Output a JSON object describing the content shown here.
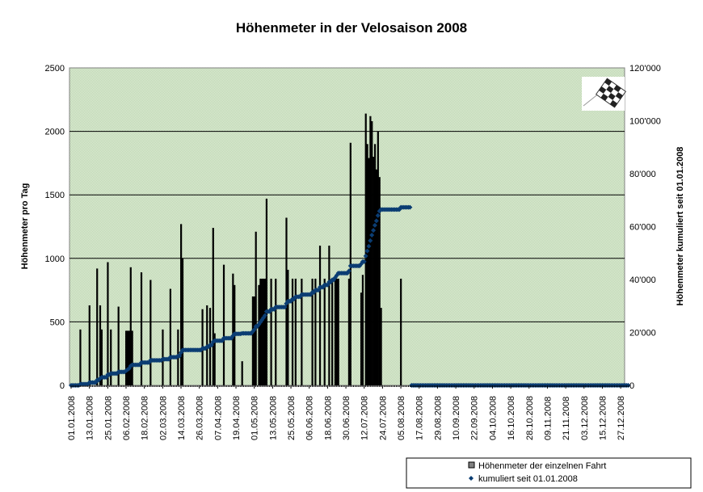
{
  "chart_data": {
    "type": "bar+line",
    "title": "Höhenmeter in der Velosaison 2008",
    "ylabel": "Höhenmeter pro Tag",
    "y2label": "Höhenmeter kumuliert seit 01.01.2008",
    "ylim": [
      0,
      2500
    ],
    "y2lim": [
      0,
      120000
    ],
    "yticks": [
      "0",
      "500",
      "1000",
      "1500",
      "2000",
      "2500"
    ],
    "y2ticks": [
      "0",
      "20'000",
      "40'000",
      "60'000",
      "80'000",
      "100'000",
      "120'000"
    ],
    "xlim_days": [
      0,
      365
    ],
    "xticks": [
      "01.01.2008",
      "13.01.2008",
      "25.01.2008",
      "06.02.2008",
      "18.02.2008",
      "02.03.2008",
      "14.03.2008",
      "26.03.2008",
      "07.04.2008",
      "19.04.2008",
      "01.05.2008",
      "13.05.2008",
      "25.05.2008",
      "06.06.2008",
      "18.06.2008",
      "30.06.2008",
      "12.07.2008",
      "24.07.2008",
      "05.08.2008",
      "17.08.2008",
      "29.08.2008",
      "10.09.2008",
      "22.09.2008",
      "04.10.2008",
      "16.10.2008",
      "28.10.2008",
      "09.11.2008",
      "21.11.2008",
      "03.12.2008",
      "15.12.2008",
      "27.12.2008"
    ],
    "grid": true,
    "legend_position": "bottom-right",
    "series": [
      {
        "name": "Höhenmeter der einzelnen Fahrt",
        "type": "bar",
        "color": "#000000",
        "axis": "left",
        "points_day_value": [
          [
            6,
            440
          ],
          [
            12,
            630
          ],
          [
            17,
            920
          ],
          [
            19,
            630
          ],
          [
            20,
            440
          ],
          [
            24,
            970
          ],
          [
            26,
            440
          ],
          [
            31,
            620
          ],
          [
            36,
            430
          ],
          [
            37,
            430
          ],
          [
            38,
            430
          ],
          [
            39,
            930
          ],
          [
            40,
            430
          ],
          [
            46,
            890
          ],
          [
            52,
            830
          ],
          [
            60,
            440
          ],
          [
            65,
            760
          ],
          [
            70,
            440
          ],
          [
            72,
            1270
          ],
          [
            73,
            1000
          ],
          [
            86,
            600
          ],
          [
            89,
            630
          ],
          [
            91,
            610
          ],
          [
            93,
            1240
          ],
          [
            94,
            410
          ],
          [
            100,
            950
          ],
          [
            106,
            880
          ],
          [
            107,
            790
          ],
          [
            112,
            190
          ],
          [
            119,
            700
          ],
          [
            120,
            700
          ],
          [
            121,
            1210
          ],
          [
            123,
            790
          ],
          [
            124,
            840
          ],
          [
            125,
            840
          ],
          [
            126,
            840
          ],
          [
            127,
            840
          ],
          [
            128,
            1470
          ],
          [
            131,
            840
          ],
          [
            134,
            840
          ],
          [
            141,
            1320
          ],
          [
            142,
            910
          ],
          [
            145,
            840
          ],
          [
            147,
            840
          ],
          [
            151,
            840
          ],
          [
            158,
            840
          ],
          [
            160,
            840
          ],
          [
            163,
            1100
          ],
          [
            166,
            840
          ],
          [
            169,
            1100
          ],
          [
            171,
            840
          ],
          [
            173,
            840
          ],
          [
            174,
            840
          ],
          [
            175,
            840
          ],
          [
            182,
            840
          ],
          [
            183,
            1910
          ],
          [
            190,
            730
          ],
          [
            191,
            870
          ],
          [
            193,
            2140
          ],
          [
            194,
            1900
          ],
          [
            195,
            1790
          ],
          [
            196,
            2120
          ],
          [
            197,
            2080
          ],
          [
            198,
            1800
          ],
          [
            199,
            1900
          ],
          [
            200,
            1700
          ],
          [
            201,
            2000
          ],
          [
            202,
            1640
          ],
          [
            203,
            610
          ],
          [
            216,
            840
          ]
        ]
      },
      {
        "name": "kumuliert seit 01.01.2008",
        "type": "line-markers",
        "color": "#0B3D73",
        "axis": "right",
        "cumulative_of": "Höhenmeter der einzelnen Fahrt",
        "last_recorded_day": 222
      }
    ]
  },
  "legend": {
    "bar_label": "Höhenmeter der einzelnen Fahrt",
    "line_label": "kumuliert seit 01.01.2008"
  },
  "colors": {
    "plot_bg": "#CFE3C4",
    "line": "#0B3D73",
    "bar": "#000000"
  }
}
